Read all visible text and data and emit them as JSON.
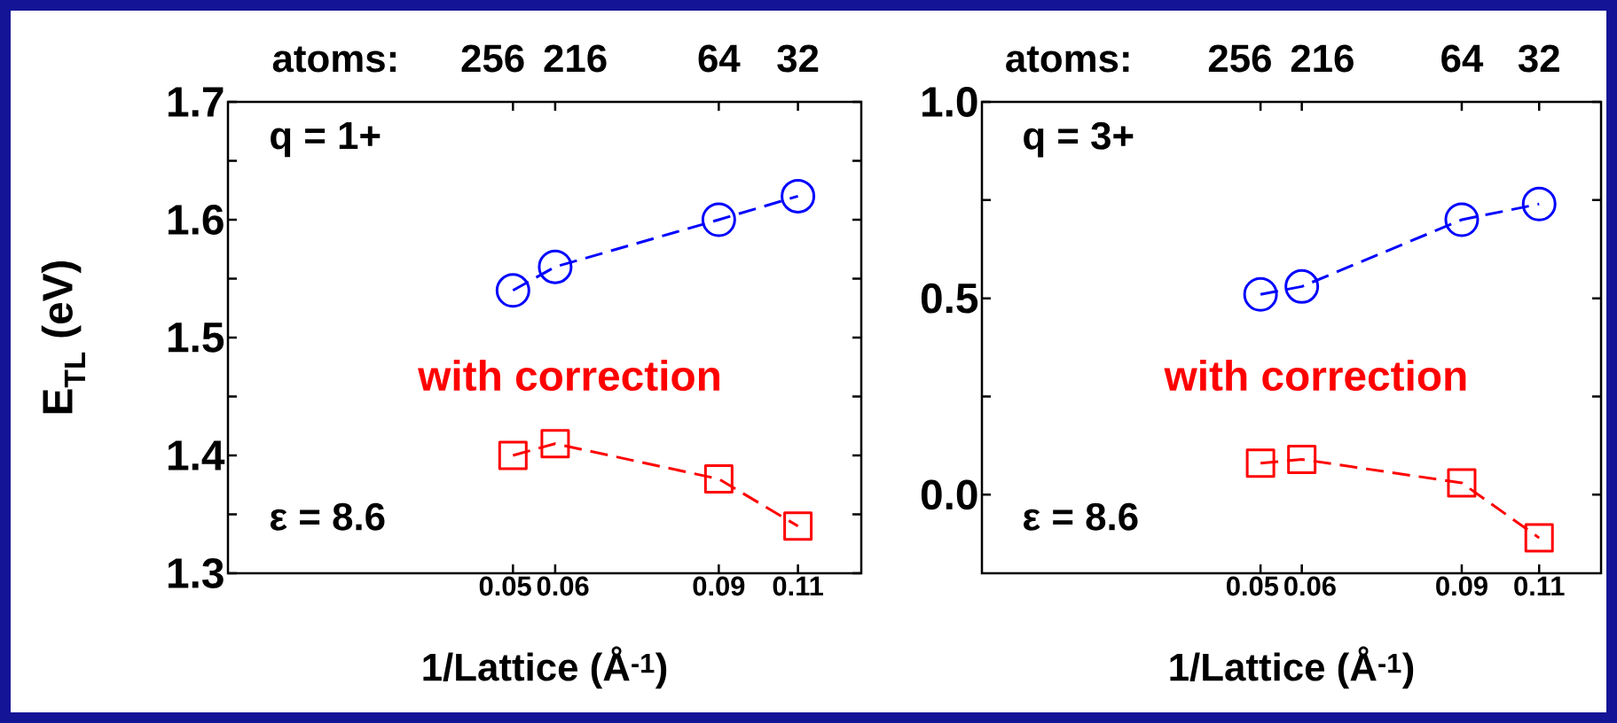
{
  "chart_data": [
    {
      "type": "line",
      "xlabel": "1/Lattice (Å$^{-1}$)",
      "ylabel": "E$_{TL}$ (eV)",
      "x": [
        0.054,
        0.062,
        0.093,
        0.108
      ],
      "series": [
        {
          "color": "#0000ff",
          "marker": "circle",
          "values": [
            1.54,
            1.56,
            1.6,
            1.62
          ]
        },
        {
          "color": "#ff0000",
          "marker": "square",
          "values": [
            1.4,
            1.41,
            1.38,
            1.34
          ]
        }
      ],
      "line_style": "dashed",
      "xlim": [
        0,
        0.12
      ],
      "xticks": [
        {
          "value": 0.054,
          "label": "0.05"
        },
        {
          "value": 0.062,
          "label": "0.06"
        },
        {
          "value": 0.093,
          "label": "0.09"
        },
        {
          "value": 0.108,
          "label": "0.11"
        }
      ],
      "ylim": [
        1.3,
        1.7
      ],
      "yticks": [
        1.3,
        {
          "value": 1.35,
          "label": null
        },
        1.4,
        {
          "value": 1.45,
          "label": null
        },
        1.5,
        {
          "value": 1.55,
          "label": null
        },
        1.6,
        {
          "value": 1.65,
          "label": null
        },
        1.7
      ],
      "annotations": [
        "q = 1+",
        "with correction",
        "ε = 8.6",
        "atoms:",
        {
          "text": "256",
          "x": 0.054
        },
        {
          "text": "216",
          "x": 0.062
        },
        {
          "text": "64",
          "x": 0.093
        },
        {
          "text": "32",
          "x": 0.108
        }
      ]
    },
    {
      "type": "line",
      "xlabel": "1/Lattice (Å$^{-1}$)",
      "x": [
        0.054,
        0.062,
        0.093,
        0.108
      ],
      "series": [
        {
          "color": "#0000ff",
          "marker": "circle",
          "values": [
            0.51,
            0.53,
            0.7,
            0.74
          ]
        },
        {
          "color": "#ff0000",
          "marker": "square",
          "values": [
            0.08,
            0.09,
            0.03,
            -0.11
          ]
        }
      ],
      "line_style": "dashed",
      "xlim": [
        0,
        0.12
      ],
      "xticks": [
        {
          "value": 0.054,
          "label": "0.05"
        },
        {
          "value": 0.062,
          "label": "0.06"
        },
        {
          "value": 0.093,
          "label": "0.09"
        },
        {
          "value": 0.108,
          "label": "0.11"
        }
      ],
      "ylim": [
        -0.2,
        1.0
      ],
      "yticks": [
        {
          "value": 0,
          "label": "0.0"
        },
        {
          "value": 0.25,
          "label": null
        },
        {
          "value": 0.5,
          "label": "0.5"
        },
        {
          "value": 0.75,
          "label": null
        },
        {
          "value": 1,
          "label": "1.0"
        }
      ],
      "annotations": [
        "q = 3+",
        "with correction",
        "ε = 8.6",
        "atoms:",
        {
          "text": "256",
          "x": 0.054
        },
        {
          "text": "216",
          "x": 0.062
        },
        {
          "text": "64",
          "x": 0.093
        },
        {
          "text": "32",
          "x": 0.108
        }
      ]
    }
  ]
}
